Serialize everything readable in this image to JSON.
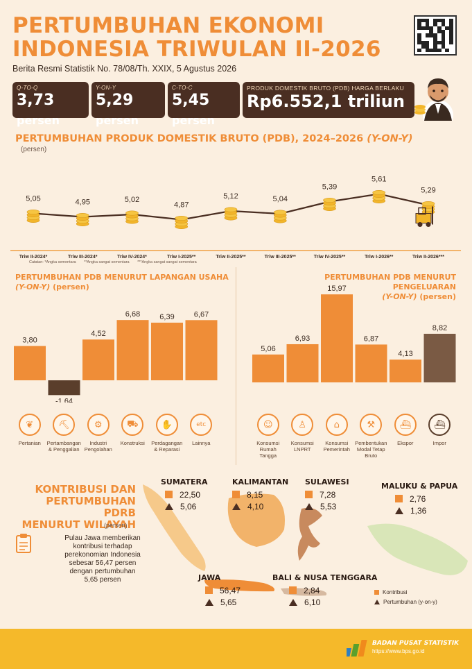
{
  "header": {
    "title_line1": "PERTUMBUHAN EKONOMI",
    "title_line2": "INDONESIA TRIWULAN II-2026",
    "subtitle": "Berita Resmi Statistik No. 78/08/Th. XXIX, 5 Agustus 2026"
  },
  "stats": [
    {
      "label": "Q-TO-Q",
      "value": "3,73",
      "unit": "persen"
    },
    {
      "label": "Y-ON-Y",
      "value": "5,29",
      "unit": "persen"
    },
    {
      "label": "C-TO-C",
      "value": "5,45",
      "unit": "persen"
    }
  ],
  "pdb": {
    "label": "PRODUK DOMESTIK BRUTO (PDB) HARGA BERLAKU",
    "value": "Rp6.552,1 triliun"
  },
  "line_section": {
    "title": "PERTUMBUHAN PRODUK DOMESTIK BRUTO (PDB), 2024–2026",
    "title_em": "(Y-ON-Y)",
    "unit": "(persen)",
    "notes": [
      "Catatan: *Angka sementara",
      "**Angka sangat sementara",
      "***Angka sangat sangat sementara"
    ]
  },
  "bar_left": {
    "title": "PERTUMBUHAN PDB MENURUT LAPANGAN USAHA",
    "title_em": "(Y-ON-Y)",
    "unit": "(persen)"
  },
  "bar_right": {
    "title": "PERTUMBUHAN PDB MENURUT PENGELUARAN",
    "title_em": "(Y-ON-Y)",
    "unit": "(persen)"
  },
  "chart_data": [
    {
      "type": "line",
      "title": "PERTUMBUHAN PRODUK DOMESTIK BRUTO (PDB), 2024–2026 (Y-ON-Y)",
      "ylabel": "(persen)",
      "x": [
        "Triw II-2024*",
        "Triw III-2024*",
        "Triw IV-2024*",
        "Triw I-2025**",
        "Triw II-2025**",
        "Triw III-2025**",
        "Triw IV-2025**",
        "Triw I-2026**",
        "Triw II-2026***"
      ],
      "y": [
        5.05,
        4.95,
        5.02,
        4.87,
        5.12,
        5.04,
        5.39,
        5.61,
        5.29
      ],
      "labels": [
        "5,05",
        "4,95",
        "5,02",
        "4,87",
        "5,12",
        "5,04",
        "5,39",
        "5,61",
        "5,29"
      ],
      "ylim": [
        4.6,
        5.8
      ],
      "grid": false
    },
    {
      "type": "bar",
      "title": "PERTUMBUHAN PDB MENURUT LAPANGAN USAHA (Y-ON-Y)",
      "ylabel": "(persen)",
      "categories": [
        "Pertanian",
        "Pertambangan & Penggalian",
        "Industri Pengolahan",
        "Konstruksi",
        "Perdagangan & Reparasi",
        "Lainnya"
      ],
      "values": [
        3.8,
        -1.64,
        4.52,
        6.68,
        6.39,
        6.67
      ],
      "labels": [
        "3,80",
        "-1,64",
        "4,52",
        "6,68",
        "6,39",
        "6,67"
      ],
      "colors": [
        "#ef8d37",
        "#5a3e2b",
        "#ef8d37",
        "#ef8d37",
        "#ef8d37",
        "#ef8d37"
      ],
      "ylim": [
        -2,
        8
      ]
    },
    {
      "type": "bar",
      "title": "PERTUMBUHAN PDB MENURUT PENGELUARAN (Y-ON-Y)",
      "ylabel": "(persen)",
      "categories": [
        "Konsumsi Rumah Tangga",
        "Konsumsi LNPRT",
        "Konsumsi Pemerintah",
        "Pembentukan Modal Tetap Bruto",
        "Ekspor",
        "Impor"
      ],
      "values": [
        5.06,
        6.93,
        15.97,
        6.87,
        4.13,
        8.82
      ],
      "labels": [
        "5,06",
        "6,93",
        "15,97",
        "6,87",
        "4,13",
        "8,82"
      ],
      "colors": [
        "#ef8d37",
        "#ef8d37",
        "#ef8d37",
        "#ef8d37",
        "#ef8d37",
        "#7a5a44"
      ],
      "ylim": [
        0,
        17
      ]
    }
  ],
  "left_icons": [
    {
      "label_lines": [
        "Pertanian"
      ],
      "icon": "leaf-icon",
      "glyph": "❦"
    },
    {
      "label_lines": [
        "Pertambangan",
        "& Penggalian"
      ],
      "icon": "oil-pump-icon",
      "glyph": "⛏"
    },
    {
      "label_lines": [
        "Industri",
        "Pengolahan"
      ],
      "icon": "factory-icon",
      "glyph": "⚙"
    },
    {
      "label_lines": [
        "Konstruksi"
      ],
      "icon": "truck-icon",
      "glyph": "⛟"
    },
    {
      "label_lines": [
        "Perdagangan",
        "& Reparasi"
      ],
      "icon": "handshake-icon",
      "glyph": "✋"
    },
    {
      "label_lines": [
        "Lainnya"
      ],
      "icon": "etc-icon",
      "glyph": "etc"
    }
  ],
  "right_icons": [
    {
      "label_lines": [
        "Konsumsi",
        "Rumah Tangga"
      ],
      "icon": "family-icon",
      "glyph": "☺"
    },
    {
      "label_lines": [
        "Konsumsi",
        "LNPRT"
      ],
      "icon": "person-icon",
      "glyph": "♙"
    },
    {
      "label_lines": [
        "Konsumsi",
        "Pemerintah"
      ],
      "icon": "government-building-icon",
      "glyph": "⌂"
    },
    {
      "label_lines": [
        "Pembentukan",
        "Modal Tetap",
        "Bruto"
      ],
      "icon": "crane-icon",
      "glyph": "⚒"
    },
    {
      "label_lines": [
        "Ekspor"
      ],
      "icon": "ship-export-icon",
      "glyph": "⛴"
    },
    {
      "label_lines": [
        "Impor"
      ],
      "icon": "ship-import-icon",
      "glyph": "⛴"
    }
  ],
  "region": {
    "title_lines": [
      "KONTRIBUSI DAN",
      "PERTUMBUHAN PDRB",
      "MENURUT WILAYAH"
    ],
    "unit": "(persen)",
    "desc": "Pulau Jawa memberikan kontribusi terhadap perekonomian Indonesia sebesar 56,47 persen dengan pertumbuhan 5,65 persen",
    "regions": [
      {
        "name": "SUMATERA",
        "kontribusi": "22,50",
        "pertumbuhan": "5,06"
      },
      {
        "name": "KALIMANTAN",
        "kontribusi": "8,15",
        "pertumbuhan": "4,10"
      },
      {
        "name": "SULAWESI",
        "kontribusi": "7,28",
        "pertumbuhan": "5,53"
      },
      {
        "name": "MALUKU & PAPUA",
        "kontribusi": "2,76",
        "pertumbuhan": "1,36"
      },
      {
        "name": "JAWA",
        "kontribusi": "56,47",
        "pertumbuhan": "5,65"
      },
      {
        "name": "BALI & NUSA TENGGARA",
        "kontribusi": "2,84",
        "pertumbuhan": "6,10"
      }
    ],
    "legend": {
      "kontribusi": "Kontribusi",
      "pertumbuhan": "Pertumbuhan (y-on-y)"
    }
  },
  "footer": {
    "org": "BADAN PUSAT STATISTIK",
    "url": "https://www.bps.go.id"
  },
  "colors": {
    "accent": "#ef8d37",
    "dark": "#4a2e22",
    "background": "#fbefe0",
    "footer": "#f5b92a"
  }
}
